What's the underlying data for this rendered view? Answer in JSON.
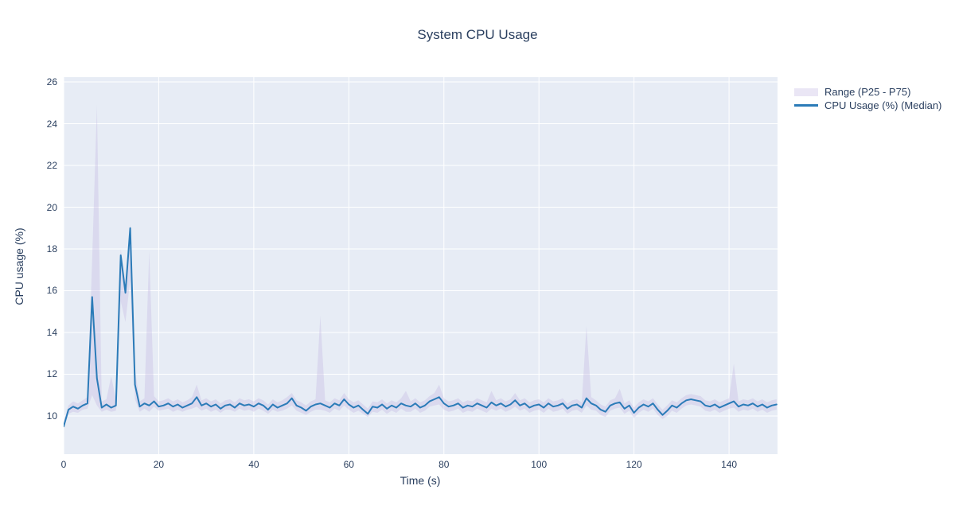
{
  "title": "System CPU Usage",
  "colors": {
    "text": "#2a3f5f",
    "line": "#2b7bb8",
    "band_fill": "rgba(190,180,225,0.33)",
    "plot_bg": "#e7ecf5",
    "grid": "#ffffff",
    "page_bg": "#ffffff"
  },
  "legend": {
    "items": [
      {
        "label": "Range (P25 - P75)",
        "type": "fill"
      },
      {
        "label": "CPU Usage (%) (Median)",
        "type": "line"
      }
    ]
  },
  "chart_data": {
    "type": "line",
    "title": "System CPU Usage",
    "xlabel": "Time (s)",
    "ylabel": "CPU usage (%)",
    "xlim": [
      0,
      150.2
    ],
    "ylim": [
      8.17,
      26.23
    ],
    "xticks": [
      0,
      20,
      40,
      60,
      80,
      100,
      120,
      140
    ],
    "yticks": [
      10,
      12,
      14,
      16,
      18,
      20,
      22,
      24,
      26
    ],
    "grid": true,
    "legend_position": "right-top",
    "x": [
      0,
      1,
      2,
      3,
      4,
      5,
      6,
      7,
      8,
      9,
      10,
      11,
      12,
      13,
      14,
      15,
      16,
      17,
      18,
      19,
      20,
      21,
      22,
      23,
      24,
      25,
      26,
      27,
      28,
      29,
      30,
      31,
      32,
      33,
      34,
      35,
      36,
      37,
      38,
      39,
      40,
      41,
      42,
      43,
      44,
      45,
      46,
      47,
      48,
      49,
      50,
      51,
      52,
      53,
      54,
      55,
      56,
      57,
      58,
      59,
      60,
      61,
      62,
      63,
      64,
      65,
      66,
      67,
      68,
      69,
      70,
      71,
      72,
      73,
      74,
      75,
      76,
      77,
      78,
      79,
      80,
      81,
      82,
      83,
      84,
      85,
      86,
      87,
      88,
      89,
      90,
      91,
      92,
      93,
      94,
      95,
      96,
      97,
      98,
      99,
      100,
      101,
      102,
      103,
      104,
      105,
      106,
      107,
      108,
      109,
      110,
      111,
      112,
      113,
      114,
      115,
      116,
      117,
      118,
      119,
      120,
      121,
      122,
      123,
      124,
      125,
      126,
      127,
      128,
      129,
      130,
      131,
      132,
      133,
      134,
      135,
      136,
      137,
      138,
      139,
      140,
      141,
      142,
      143,
      144,
      145,
      146,
      147,
      148,
      149,
      150
    ],
    "series": [
      {
        "name": "CPU Usage (%) (Median)",
        "values": [
          9.5,
          10.3,
          10.45,
          10.35,
          10.5,
          10.6,
          15.7,
          11.8,
          10.4,
          10.55,
          10.4,
          10.5,
          17.7,
          15.9,
          19.0,
          11.5,
          10.45,
          10.6,
          10.5,
          10.7,
          10.45,
          10.5,
          10.6,
          10.45,
          10.55,
          10.4,
          10.5,
          10.6,
          10.9,
          10.5,
          10.6,
          10.45,
          10.55,
          10.35,
          10.5,
          10.55,
          10.4,
          10.6,
          10.5,
          10.55,
          10.45,
          10.6,
          10.5,
          10.3,
          10.55,
          10.4,
          10.5,
          10.6,
          10.85,
          10.5,
          10.4,
          10.25,
          10.45,
          10.55,
          10.6,
          10.5,
          10.4,
          10.6,
          10.5,
          10.8,
          10.55,
          10.4,
          10.5,
          10.3,
          10.1,
          10.45,
          10.4,
          10.55,
          10.35,
          10.5,
          10.4,
          10.6,
          10.5,
          10.45,
          10.6,
          10.4,
          10.5,
          10.7,
          10.8,
          10.9,
          10.6,
          10.45,
          10.5,
          10.6,
          10.4,
          10.5,
          10.45,
          10.6,
          10.5,
          10.4,
          10.65,
          10.5,
          10.6,
          10.45,
          10.55,
          10.75,
          10.5,
          10.6,
          10.4,
          10.5,
          10.55,
          10.4,
          10.6,
          10.45,
          10.5,
          10.6,
          10.35,
          10.5,
          10.55,
          10.4,
          10.85,
          10.6,
          10.5,
          10.3,
          10.2,
          10.5,
          10.6,
          10.65,
          10.35,
          10.5,
          10.15,
          10.4,
          10.55,
          10.45,
          10.6,
          10.3,
          10.05,
          10.25,
          10.5,
          10.4,
          10.6,
          10.75,
          10.8,
          10.75,
          10.7,
          10.5,
          10.45,
          10.55,
          10.4,
          10.5,
          10.6,
          10.7,
          10.45,
          10.55,
          10.5,
          10.6,
          10.45,
          10.55,
          10.4,
          10.5,
          10.55
        ]
      },
      {
        "name": "P25",
        "values": [
          9.4,
          10.1,
          10.2,
          10.15,
          10.3,
          10.35,
          11.0,
          10.5,
          10.2,
          10.3,
          10.2,
          10.25,
          15.5,
          14.5,
          16.5,
          10.8,
          10.2,
          10.35,
          10.2,
          10.45,
          10.25,
          10.3,
          10.35,
          10.2,
          10.3,
          10.2,
          10.3,
          10.35,
          10.45,
          10.25,
          10.35,
          10.2,
          10.3,
          10.15,
          10.3,
          10.3,
          10.2,
          10.35,
          10.25,
          10.3,
          10.2,
          10.35,
          10.25,
          10.1,
          10.3,
          10.2,
          10.25,
          10.35,
          10.5,
          10.25,
          10.15,
          10.05,
          10.2,
          10.3,
          10.3,
          10.25,
          10.15,
          10.35,
          10.25,
          10.5,
          10.3,
          10.15,
          10.25,
          10.1,
          9.95,
          10.2,
          10.15,
          10.3,
          10.1,
          10.25,
          10.15,
          10.35,
          10.2,
          10.2,
          10.35,
          10.15,
          10.25,
          10.45,
          10.5,
          10.55,
          10.3,
          10.2,
          10.25,
          10.35,
          10.15,
          10.25,
          10.2,
          10.35,
          10.25,
          10.15,
          10.35,
          10.25,
          10.35,
          10.2,
          10.3,
          10.45,
          10.25,
          10.35,
          10.15,
          10.25,
          10.3,
          10.15,
          10.35,
          10.2,
          10.25,
          10.35,
          10.1,
          10.25,
          10.3,
          10.15,
          10.5,
          10.3,
          10.25,
          10.05,
          9.95,
          10.25,
          10.35,
          10.4,
          10.1,
          10.25,
          9.9,
          10.15,
          10.3,
          10.2,
          10.35,
          10.05,
          9.85,
          10.0,
          10.25,
          10.15,
          10.35,
          10.5,
          10.55,
          10.5,
          10.45,
          10.25,
          10.2,
          10.3,
          10.15,
          10.25,
          10.35,
          10.4,
          10.2,
          10.3,
          10.25,
          10.35,
          10.2,
          10.3,
          10.15,
          10.25,
          10.3
        ]
      },
      {
        "name": "P75",
        "values": [
          9.7,
          10.5,
          10.7,
          10.6,
          10.75,
          10.9,
          17.5,
          24.9,
          10.7,
          10.8,
          11.9,
          10.8,
          18.0,
          16.4,
          19.2,
          12.2,
          10.7,
          10.85,
          17.9,
          10.95,
          10.7,
          10.75,
          10.85,
          10.7,
          10.8,
          10.65,
          10.75,
          10.9,
          11.5,
          10.75,
          10.85,
          10.7,
          10.8,
          10.6,
          10.75,
          10.8,
          10.65,
          10.85,
          10.75,
          10.8,
          10.7,
          10.85,
          10.75,
          10.55,
          10.8,
          10.65,
          10.75,
          10.9,
          11.1,
          10.75,
          10.65,
          10.5,
          10.7,
          10.8,
          14.8,
          10.75,
          10.65,
          10.85,
          10.75,
          11.1,
          10.8,
          10.65,
          10.75,
          10.55,
          10.35,
          10.7,
          10.65,
          10.8,
          10.6,
          10.75,
          10.65,
          10.85,
          11.2,
          10.7,
          10.85,
          10.65,
          10.75,
          10.95,
          11.1,
          11.5,
          10.85,
          10.7,
          10.75,
          10.85,
          10.65,
          10.75,
          10.7,
          10.85,
          10.75,
          10.65,
          11.2,
          10.75,
          10.85,
          10.7,
          10.8,
          11.1,
          10.75,
          10.85,
          10.65,
          10.75,
          10.8,
          10.65,
          10.85,
          10.7,
          10.75,
          10.85,
          10.6,
          10.75,
          10.8,
          10.65,
          14.3,
          10.9,
          10.75,
          10.55,
          10.45,
          10.75,
          10.85,
          11.3,
          10.6,
          10.75,
          10.4,
          10.65,
          10.8,
          10.7,
          10.85,
          10.55,
          10.3,
          10.5,
          10.75,
          10.65,
          10.85,
          11.0,
          11.05,
          11.0,
          10.95,
          10.75,
          10.7,
          10.8,
          10.65,
          10.75,
          10.85,
          12.5,
          10.7,
          10.8,
          10.75,
          10.85,
          10.7,
          10.8,
          10.65,
          10.75,
          10.8
        ]
      }
    ]
  }
}
